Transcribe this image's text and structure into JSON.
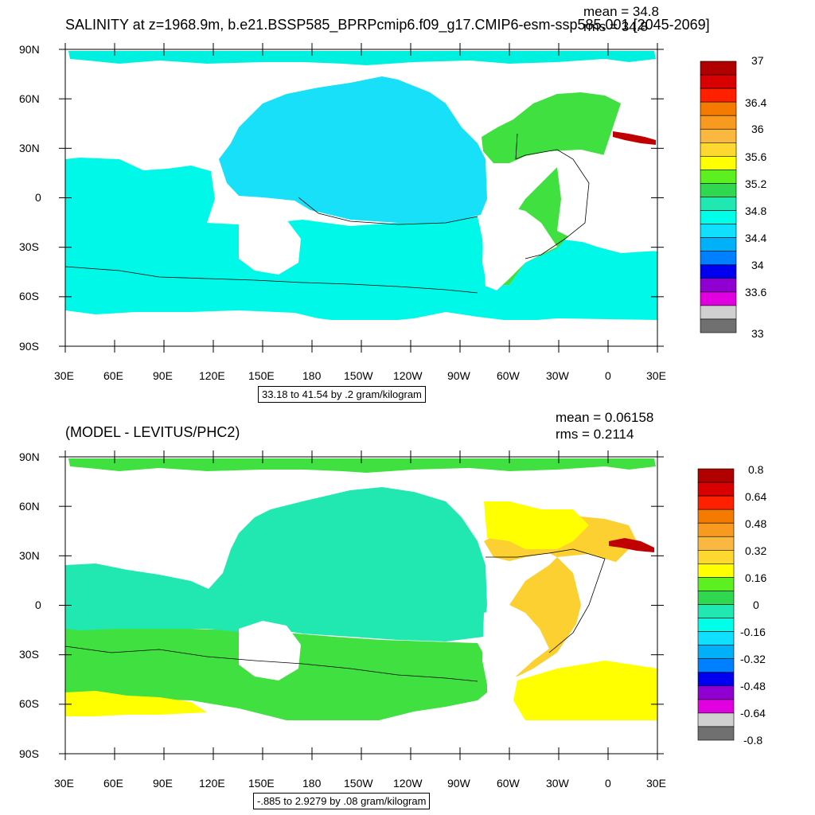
{
  "panels": [
    {
      "title": "SALINITY at z=1968.9m, b.e21.BSSP585_BPRPcmip6.f09_g17.CMIP6-esm-ssp585.001 [2045-2069]",
      "mean_label": "mean = 34.8",
      "rms_label": "rms = 34.8",
      "range_label": "33.18 to 41.54 by .2 gram/kilogram",
      "colorbar_labels": [
        "37",
        "36.4",
        "36",
        "35.6",
        "35.2",
        "34.8",
        "34.4",
        "34",
        "33.6",
        "33"
      ],
      "colorbar_colors": [
        "#b00000",
        "#d80000",
        "#ff2000",
        "#f57a00",
        "#f99a20",
        "#fbb840",
        "#fcd830",
        "#ffff00",
        "#5cf020",
        "#30d850",
        "#20e8b0",
        "#00ffe8",
        "#10e0ff",
        "#00b0f8",
        "#0080ff",
        "#0000f0",
        "#9000d0",
        "#e000e0",
        "#d0d0d0",
        "#707070"
      ]
    },
    {
      "title": "(MODEL - LEVITUS/PHC2)",
      "mean_label": "mean = 0.06158",
      "rms_label": "rms = 0.2114",
      "range_label": "-.885 to 2.9279 by .08 gram/kilogram",
      "colorbar_labels": [
        "0.8",
        "0.64",
        "0.48",
        "0.32",
        "0.16",
        "0",
        "-0.16",
        "-0.32",
        "-0.48",
        "-0.64",
        "-0.8"
      ],
      "colorbar_colors": [
        "#b00000",
        "#d80000",
        "#ff2000",
        "#f57a00",
        "#f99a20",
        "#fbb840",
        "#fcd830",
        "#ffff00",
        "#5cf020",
        "#30d850",
        "#20e8b0",
        "#00ffe8",
        "#10e0ff",
        "#00b0f8",
        "#0080ff",
        "#0000f0",
        "#9000d0",
        "#e000e0",
        "#d0d0d0",
        "#707070"
      ]
    }
  ],
  "lat_labels": [
    "90N",
    "60N",
    "30N",
    "0",
    "30S",
    "60S",
    "90S"
  ],
  "lon_labels": [
    "30E",
    "60E",
    "90E",
    "120E",
    "150E",
    "180",
    "150W",
    "120W",
    "90W",
    "60W",
    "30W",
    "0",
    "30E"
  ],
  "colors": {
    "top_pacific": "#18e0f8",
    "top_southern": "#00f8e8",
    "top_atlantic": "#40e040",
    "top_arctic": "#00f0e0",
    "bot_pacific": "#20e8b0",
    "bot_southern": "#40e040",
    "bot_atlantic": "#fbd030",
    "bot_ring": "#ffff00"
  }
}
